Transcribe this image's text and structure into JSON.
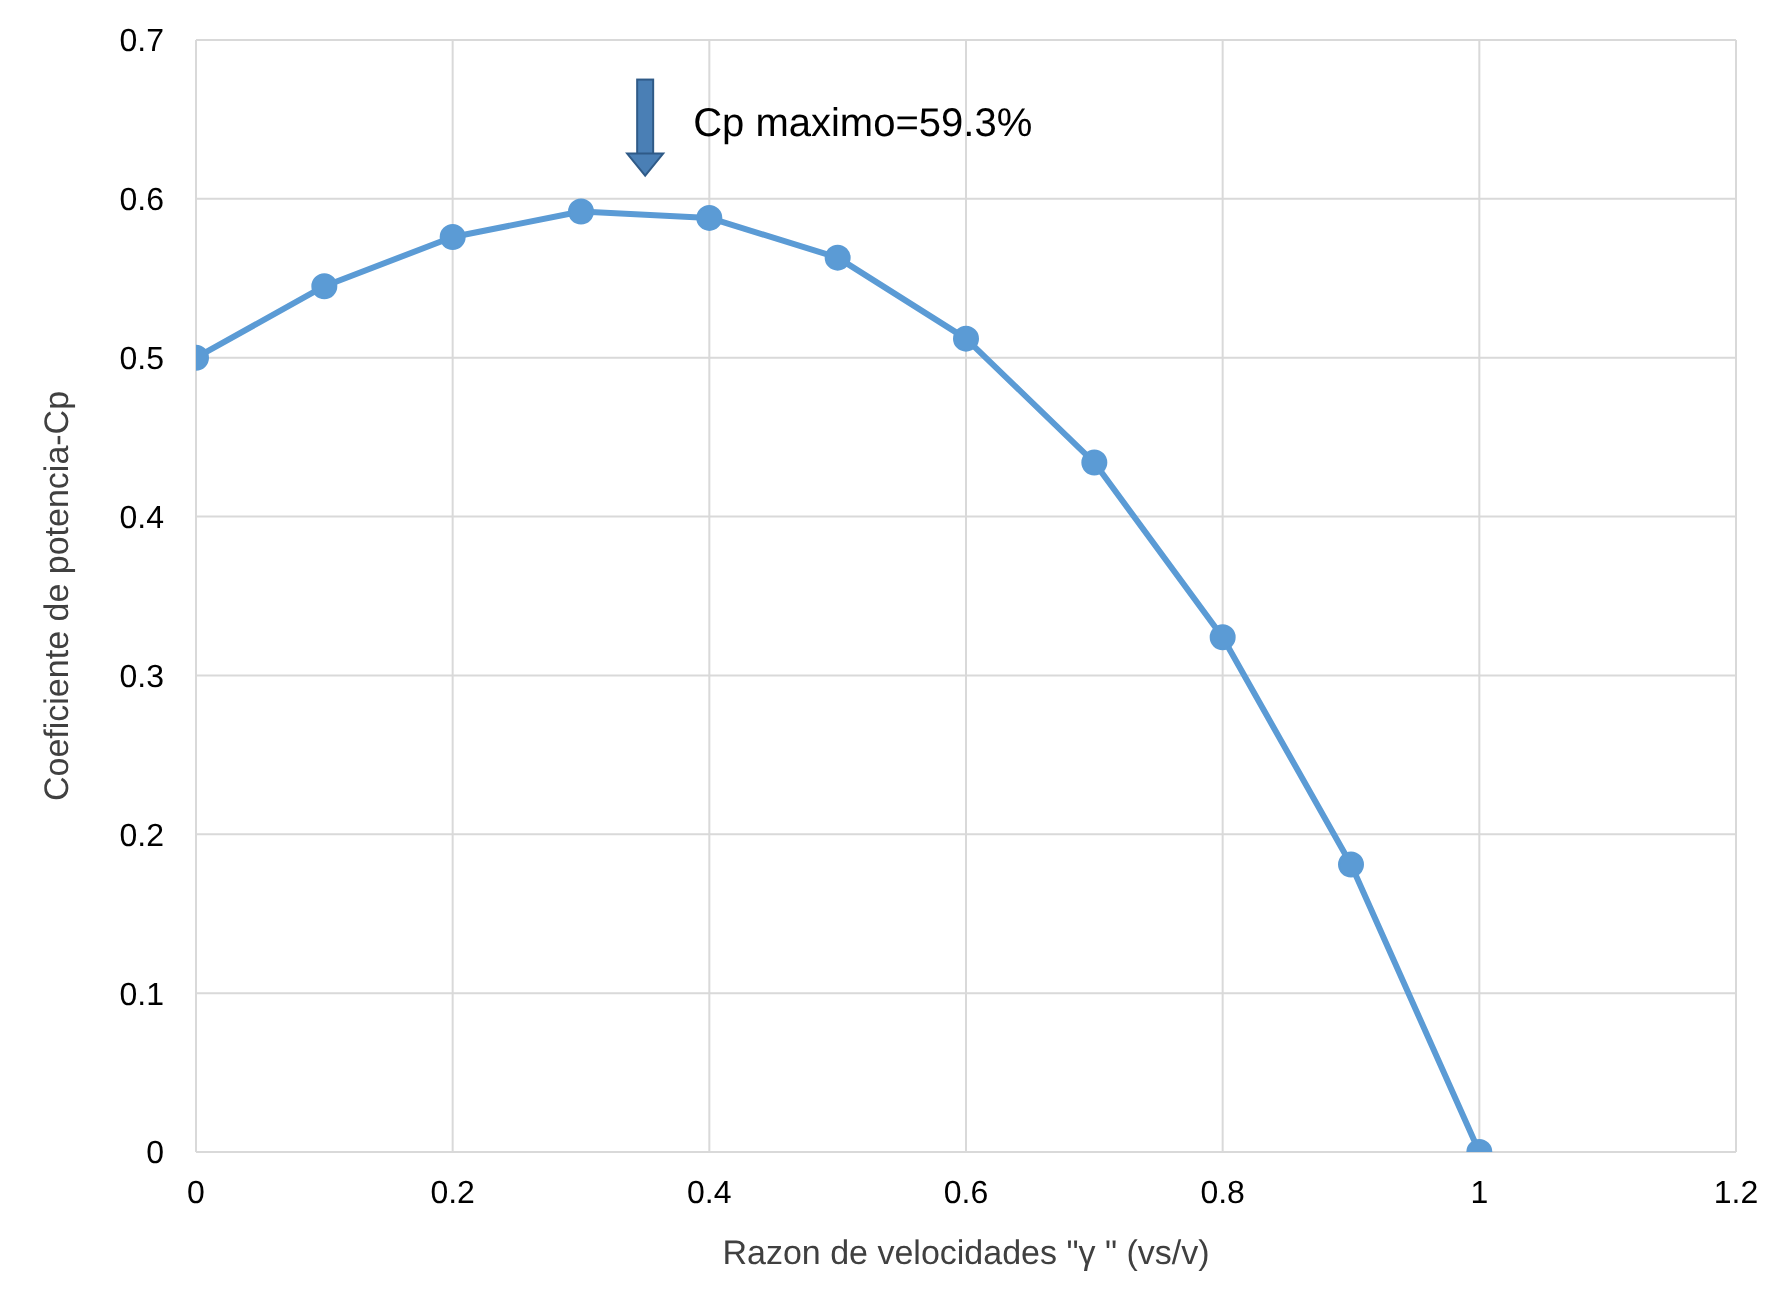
{
  "chart_data": {
    "type": "line",
    "xlabel": "Razon de velocidades \"γ \" (vs/v)",
    "ylabel": "Coeficiente de potencia-Cp",
    "x": [
      0,
      0.1,
      0.2,
      0.3,
      0.4,
      0.5,
      0.6,
      0.7,
      0.8,
      0.9,
      1
    ],
    "series": [
      {
        "color": "#5b9bd5",
        "values": [
          0.5,
          0.545,
          0.576,
          0.592,
          0.588,
          0.563,
          0.512,
          0.434,
          0.324,
          0.181,
          0
        ]
      }
    ],
    "xlim": [
      0,
      1.2
    ],
    "xticks": [
      0,
      0.2,
      0.4,
      0.6,
      0.8,
      1,
      1.2
    ],
    "ylim": [
      0,
      0.7
    ],
    "yticks": [
      0,
      0.1,
      0.2,
      0.3,
      0.4,
      0.5,
      0.6,
      0.7
    ],
    "grid": true,
    "marker": "circle",
    "line_style": "solid",
    "annotations": [
      {
        "text": "Cp maximo=59.3%",
        "x": 0.35,
        "y": 0.592
      }
    ]
  }
}
